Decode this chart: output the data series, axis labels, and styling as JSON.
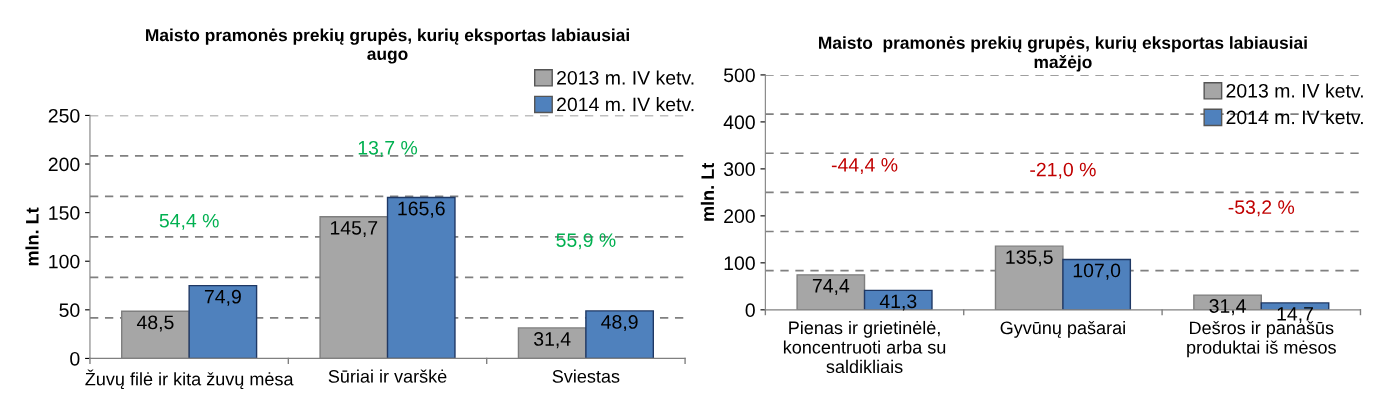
{
  "chart_data": [
    {
      "type": "bar",
      "title": "Maisto pramonės prekių grupės, kurių eksportas labiausiai\naugo",
      "ylabel": "mln. Lt",
      "categories": [
        "Žuvų filė ir kita žuvų mėsa",
        "Sūriai ir varškė",
        "Sviestas"
      ],
      "series": [
        {
          "name": "2013 m. IV ketv.",
          "color": "#a6a6a6",
          "values": [
            48.5,
            145.7,
            31.4
          ],
          "value_labels": [
            "48,5",
            "145,7",
            "31,4"
          ]
        },
        {
          "name": "2014 m. IV ketv.",
          "color": "#4f81bd",
          "values": [
            74.9,
            165.6,
            48.9
          ],
          "value_labels": [
            "74,9",
            "165,6",
            "48,9"
          ]
        }
      ],
      "ylim": [
        0,
        250
      ],
      "yticks": [
        0,
        50,
        100,
        150,
        200,
        250
      ],
      "legend": "top right",
      "ref_lines": [
        {
          "axis": "y",
          "value": 41.7,
          "color": "#808080",
          "line_style": "dashed"
        },
        {
          "axis": "y",
          "value": 83.3,
          "color": "#808080",
          "line_style": "dashed"
        },
        {
          "axis": "y",
          "value": 125,
          "color": "#808080",
          "line_style": "dashed"
        },
        {
          "axis": "y",
          "value": 166.7,
          "color": "#808080",
          "line_style": "dashed"
        },
        {
          "axis": "y",
          "value": 208.3,
          "color": "#808080",
          "line_style": "dashed"
        },
        {
          "axis": "y",
          "value": 250,
          "color": "#808080",
          "line_style": "dashed"
        }
      ],
      "annotations": [
        "54,4 %",
        "13,7 %",
        "55,9 %"
      ]
    },
    {
      "type": "bar",
      "title": "Maisto  pramonės prekių grupės, kurių eksportas labiausiai\nmažėjo",
      "ylabel": "mln. Lt",
      "categories": [
        "Pienas ir grietinėlė,\nkoncentruoti arba su\nsaldikliais",
        "Gyvūnų pašarai",
        "Dešros ir panašūs\nproduktai iš mėsos"
      ],
      "series": [
        {
          "name": "2013 m. IV ketv.",
          "color": "#a6a6a6",
          "values": [
            74.4,
            135.5,
            31.4
          ],
          "value_labels": [
            "74,4",
            "135,5",
            "31,4"
          ]
        },
        {
          "name": "2014 m. IV ketv.",
          "color": "#4f81bd",
          "values": [
            41.3,
            107.0,
            14.7
          ],
          "value_labels": [
            "41,3",
            "107,0",
            "14,7"
          ]
        }
      ],
      "ylim": [
        0,
        500
      ],
      "yticks": [
        0,
        100,
        200,
        300,
        400,
        500
      ],
      "legend": "top right",
      "ref_lines": [
        {
          "axis": "y",
          "value": 83.3,
          "color": "#808080",
          "line_style": "dashed"
        },
        {
          "axis": "y",
          "value": 166.7,
          "color": "#808080",
          "line_style": "dashed"
        },
        {
          "axis": "y",
          "value": 250,
          "color": "#808080",
          "line_style": "dashed"
        },
        {
          "axis": "y",
          "value": 333.3,
          "color": "#808080",
          "line_style": "dashed"
        },
        {
          "axis": "y",
          "value": 416.7,
          "color": "#808080",
          "line_style": "dashed"
        },
        {
          "axis": "y",
          "value": 500,
          "color": "#808080",
          "line_style": "dashed"
        }
      ],
      "annotations": [
        "-44,4 %",
        "-21,0 %",
        "-53,2 %"
      ]
    }
  ]
}
